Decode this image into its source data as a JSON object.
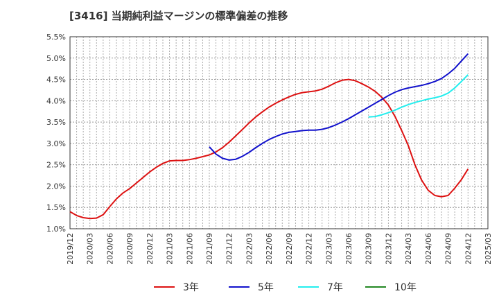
{
  "chart_data": {
    "type": "line",
    "title": "[3416]  当期純利益マージンの標準偏差の推移",
    "xlabel": "",
    "ylabel": "",
    "ylim": [
      1.0,
      5.5
    ],
    "y_ticks": [
      "1.0%",
      "1.5%",
      "2.0%",
      "2.5%",
      "3.0%",
      "3.5%",
      "4.0%",
      "4.5%",
      "5.0%",
      "5.5%"
    ],
    "y_tick_values": [
      1.0,
      1.5,
      2.0,
      2.5,
      3.0,
      3.5,
      4.0,
      4.5,
      5.0,
      5.5
    ],
    "x_range": [
      "2019/12",
      "2025/03"
    ],
    "x_ticks": [
      "2019/12",
      "2020/03",
      "2020/06",
      "2020/09",
      "2020/12",
      "2021/03",
      "2021/06",
      "2021/09",
      "2021/12",
      "2022/03",
      "2022/06",
      "2022/09",
      "2022/12",
      "2023/03",
      "2023/06",
      "2023/09",
      "2023/12",
      "2024/03",
      "2024/06",
      "2024/09",
      "2024/12",
      "2025/03"
    ],
    "grid": true,
    "legend_position": "bottom",
    "series": [
      {
        "name": "3年",
        "color": "#dd1111",
        "x": [
          "2019/12",
          "2020/01",
          "2020/02",
          "2020/03",
          "2020/04",
          "2020/05",
          "2020/06",
          "2020/07",
          "2020/08",
          "2020/09",
          "2020/10",
          "2020/11",
          "2020/12",
          "2021/01",
          "2021/02",
          "2021/03",
          "2021/04",
          "2021/05",
          "2021/06",
          "2021/07",
          "2021/08",
          "2021/09",
          "2021/10",
          "2021/11",
          "2021/12",
          "2022/01",
          "2022/02",
          "2022/03",
          "2022/04",
          "2022/05",
          "2022/06",
          "2022/07",
          "2022/08",
          "2022/09",
          "2022/10",
          "2022/11",
          "2022/12",
          "2023/01",
          "2023/02",
          "2023/03",
          "2023/04",
          "2023/05",
          "2023/06",
          "2023/07",
          "2023/08",
          "2023/09",
          "2023/10",
          "2023/11",
          "2023/12",
          "2024/01",
          "2024/02",
          "2024/03",
          "2024/04",
          "2024/05",
          "2024/06",
          "2024/07",
          "2024/08",
          "2024/09",
          "2024/10",
          "2024/11",
          "2024/12"
        ],
        "values": [
          1.4,
          1.31,
          1.26,
          1.24,
          1.25,
          1.33,
          1.52,
          1.7,
          1.84,
          1.94,
          2.07,
          2.2,
          2.33,
          2.44,
          2.53,
          2.59,
          2.6,
          2.6,
          2.62,
          2.65,
          2.69,
          2.73,
          2.8,
          2.9,
          3.03,
          3.18,
          3.33,
          3.48,
          3.62,
          3.74,
          3.85,
          3.94,
          4.02,
          4.09,
          4.15,
          4.19,
          4.21,
          4.23,
          4.27,
          4.34,
          4.42,
          4.48,
          4.5,
          4.47,
          4.4,
          4.32,
          4.22,
          4.08,
          3.9,
          3.63,
          3.3,
          2.95,
          2.5,
          2.14,
          1.9,
          1.78,
          1.75,
          1.78,
          1.95,
          2.15,
          2.4
        ]
      },
      {
        "name": "5年",
        "color": "#1111cc",
        "x": [
          "2021/09",
          "2021/10",
          "2021/11",
          "2021/12",
          "2022/01",
          "2022/02",
          "2022/03",
          "2022/04",
          "2022/05",
          "2022/06",
          "2022/07",
          "2022/08",
          "2022/09",
          "2022/10",
          "2022/11",
          "2022/12",
          "2023/01",
          "2023/02",
          "2023/03",
          "2023/04",
          "2023/05",
          "2023/06",
          "2023/07",
          "2023/08",
          "2023/09",
          "2023/10",
          "2023/11",
          "2023/12",
          "2024/01",
          "2024/02",
          "2024/03",
          "2024/04",
          "2024/05",
          "2024/06",
          "2024/07",
          "2024/08",
          "2024/09",
          "2024/10",
          "2024/11",
          "2024/12"
        ],
        "values": [
          2.92,
          2.75,
          2.65,
          2.61,
          2.63,
          2.7,
          2.79,
          2.9,
          3.0,
          3.09,
          3.16,
          3.22,
          3.26,
          3.28,
          3.3,
          3.31,
          3.31,
          3.33,
          3.37,
          3.43,
          3.5,
          3.58,
          3.67,
          3.76,
          3.85,
          3.94,
          4.03,
          4.12,
          4.2,
          4.26,
          4.3,
          4.33,
          4.36,
          4.4,
          4.45,
          4.52,
          4.63,
          4.76,
          4.93,
          5.1
        ]
      },
      {
        "name": "7年",
        "color": "#22eeee",
        "x": [
          "2023/09",
          "2023/10",
          "2023/11",
          "2023/12",
          "2024/01",
          "2024/02",
          "2024/03",
          "2024/04",
          "2024/05",
          "2024/06",
          "2024/07",
          "2024/08",
          "2024/09",
          "2024/10",
          "2024/11",
          "2024/12"
        ],
        "values": [
          3.62,
          3.63,
          3.67,
          3.72,
          3.78,
          3.85,
          3.91,
          3.96,
          4.0,
          4.04,
          4.07,
          4.11,
          4.18,
          4.3,
          4.45,
          4.61
        ]
      },
      {
        "name": "10年",
        "color": "#228822",
        "x": [],
        "values": []
      }
    ]
  }
}
